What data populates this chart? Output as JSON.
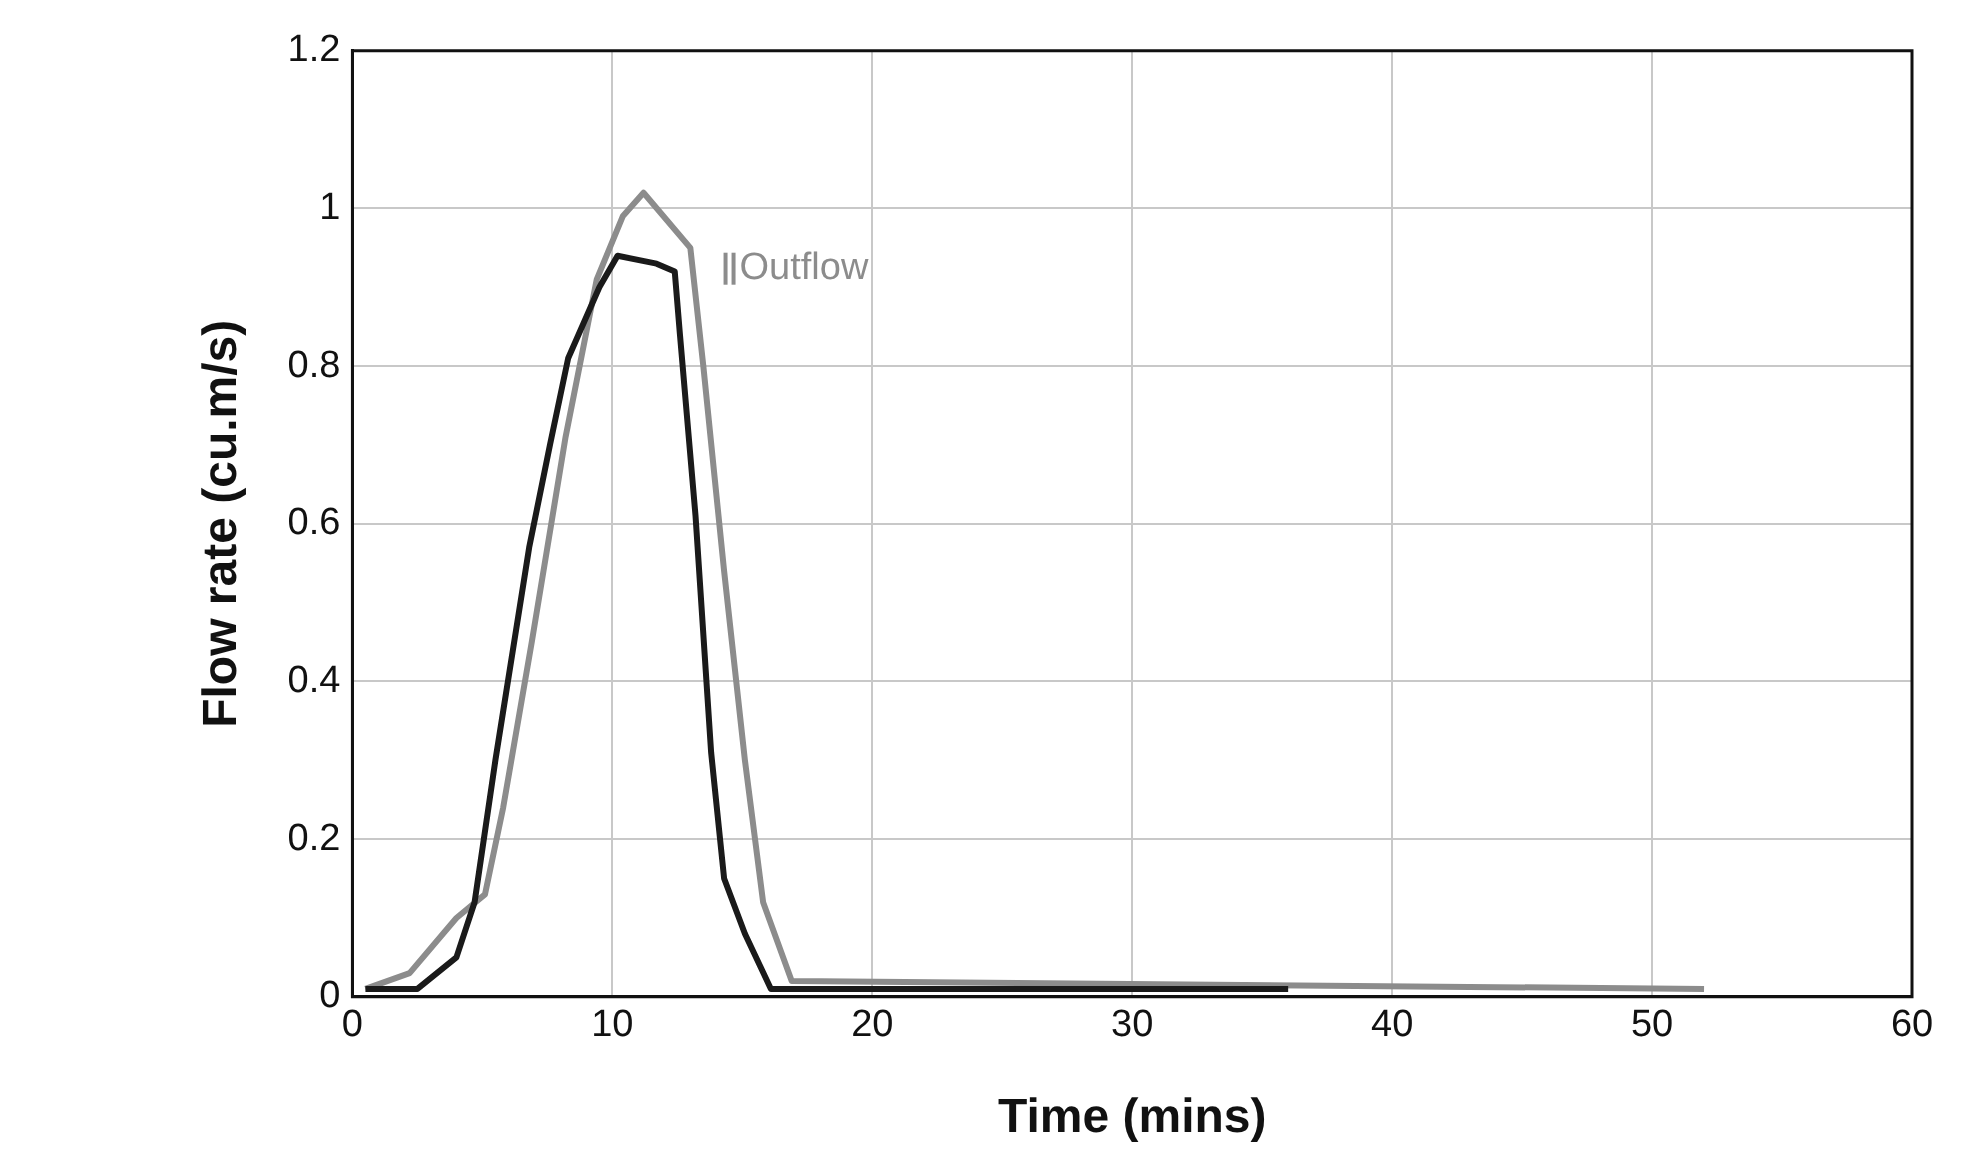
{
  "chart_data": {
    "type": "line",
    "xlabel": "Time (mins)",
    "ylabel": "Flow rate (cu.m/s)",
    "xlim": [
      0,
      60
    ],
    "xticks": [
      0,
      10,
      20,
      30,
      40,
      50,
      60
    ],
    "ylim": [
      0,
      1.2
    ],
    "yticks": [
      0,
      0.2,
      0.4,
      0.6,
      0.8,
      1,
      1.2
    ],
    "grid": true,
    "legend": "top",
    "marker": "none",
    "line_style": "solid",
    "series": [
      {
        "color": "#1a1a1a",
        "x": [
          0.5,
          2.5,
          4,
          4.7,
          5.5,
          6.8,
          7.6,
          8.3,
          9.5,
          10.2,
          11.7,
          12.4,
          12.6,
          13.2,
          13.8,
          14.3,
          15.1,
          16.1,
          36
        ],
        "values": [
          0.01,
          0.01,
          0.05,
          0.12,
          0.3,
          0.57,
          0.7,
          0.81,
          0.9,
          0.94,
          0.93,
          0.92,
          0.84,
          0.61,
          0.31,
          0.15,
          0.08,
          0.01,
          0.01
        ]
      },
      {
        "name": "Outflow",
        "color": "#8c8c8c",
        "x": [
          0.5,
          2.2,
          4,
          5.1,
          5.8,
          6.9,
          8.2,
          9.4,
          10.4,
          11.2,
          13,
          13.5,
          14.3,
          15.1,
          15.8,
          16.9,
          52
        ],
        "values": [
          0.01,
          0.03,
          0.1,
          0.13,
          0.24,
          0.45,
          0.71,
          0.91,
          0.99,
          1.02,
          0.95,
          0.8,
          0.54,
          0.3,
          0.12,
          0.02,
          0.01
        ]
      }
    ]
  }
}
